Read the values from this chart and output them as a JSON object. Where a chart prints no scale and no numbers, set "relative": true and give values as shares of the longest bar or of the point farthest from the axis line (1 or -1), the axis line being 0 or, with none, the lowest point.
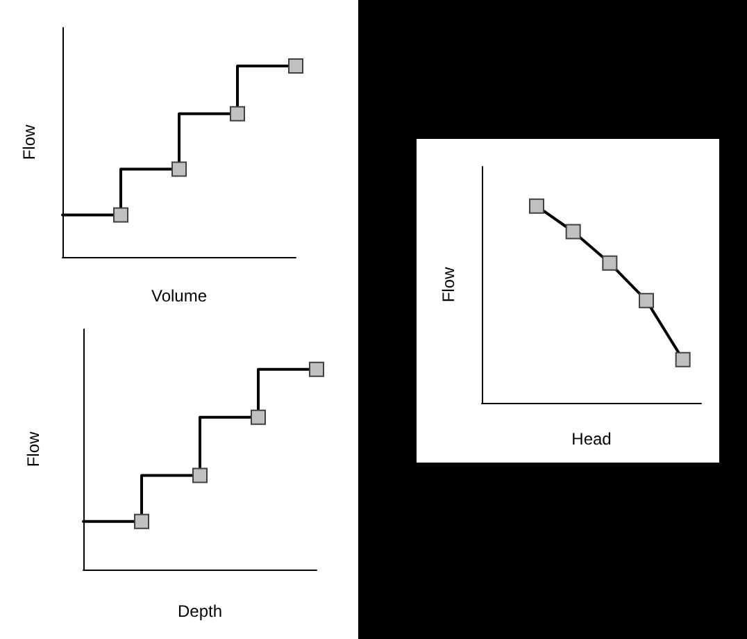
{
  "chart_data": [
    {
      "type": "step",
      "xlabel": "Volume",
      "ylabel": "Flow",
      "relative": true,
      "marker": "square",
      "line_style": "solid",
      "grid": false,
      "categories": [
        null,
        null,
        null,
        null,
        null
      ],
      "series": [
        {
          "color": "#000000",
          "values": [
            0.22,
            0.22,
            0.46,
            0.75,
            1
          ]
        }
      ]
    },
    {
      "type": "step",
      "xlabel": "Depth",
      "ylabel": "Flow",
      "relative": true,
      "marker": "square",
      "line_style": "solid",
      "grid": false,
      "categories": [
        null,
        null,
        null,
        null,
        null
      ],
      "series": [
        {
          "color": "#000000",
          "values": [
            0.24,
            0.24,
            0.47,
            0.76,
            1
          ]
        }
      ]
    },
    {
      "type": "line",
      "xlabel": "Head",
      "ylabel": "Flow",
      "relative": true,
      "marker": "square",
      "line_style": "solid",
      "grid": false,
      "categories": [
        null,
        null,
        null,
        null,
        null,
        null
      ],
      "series": [
        {
          "color": "#000000",
          "values": [
            null,
            1,
            0.87,
            0.71,
            0.52,
            0.22
          ]
        }
      ]
    }
  ]
}
